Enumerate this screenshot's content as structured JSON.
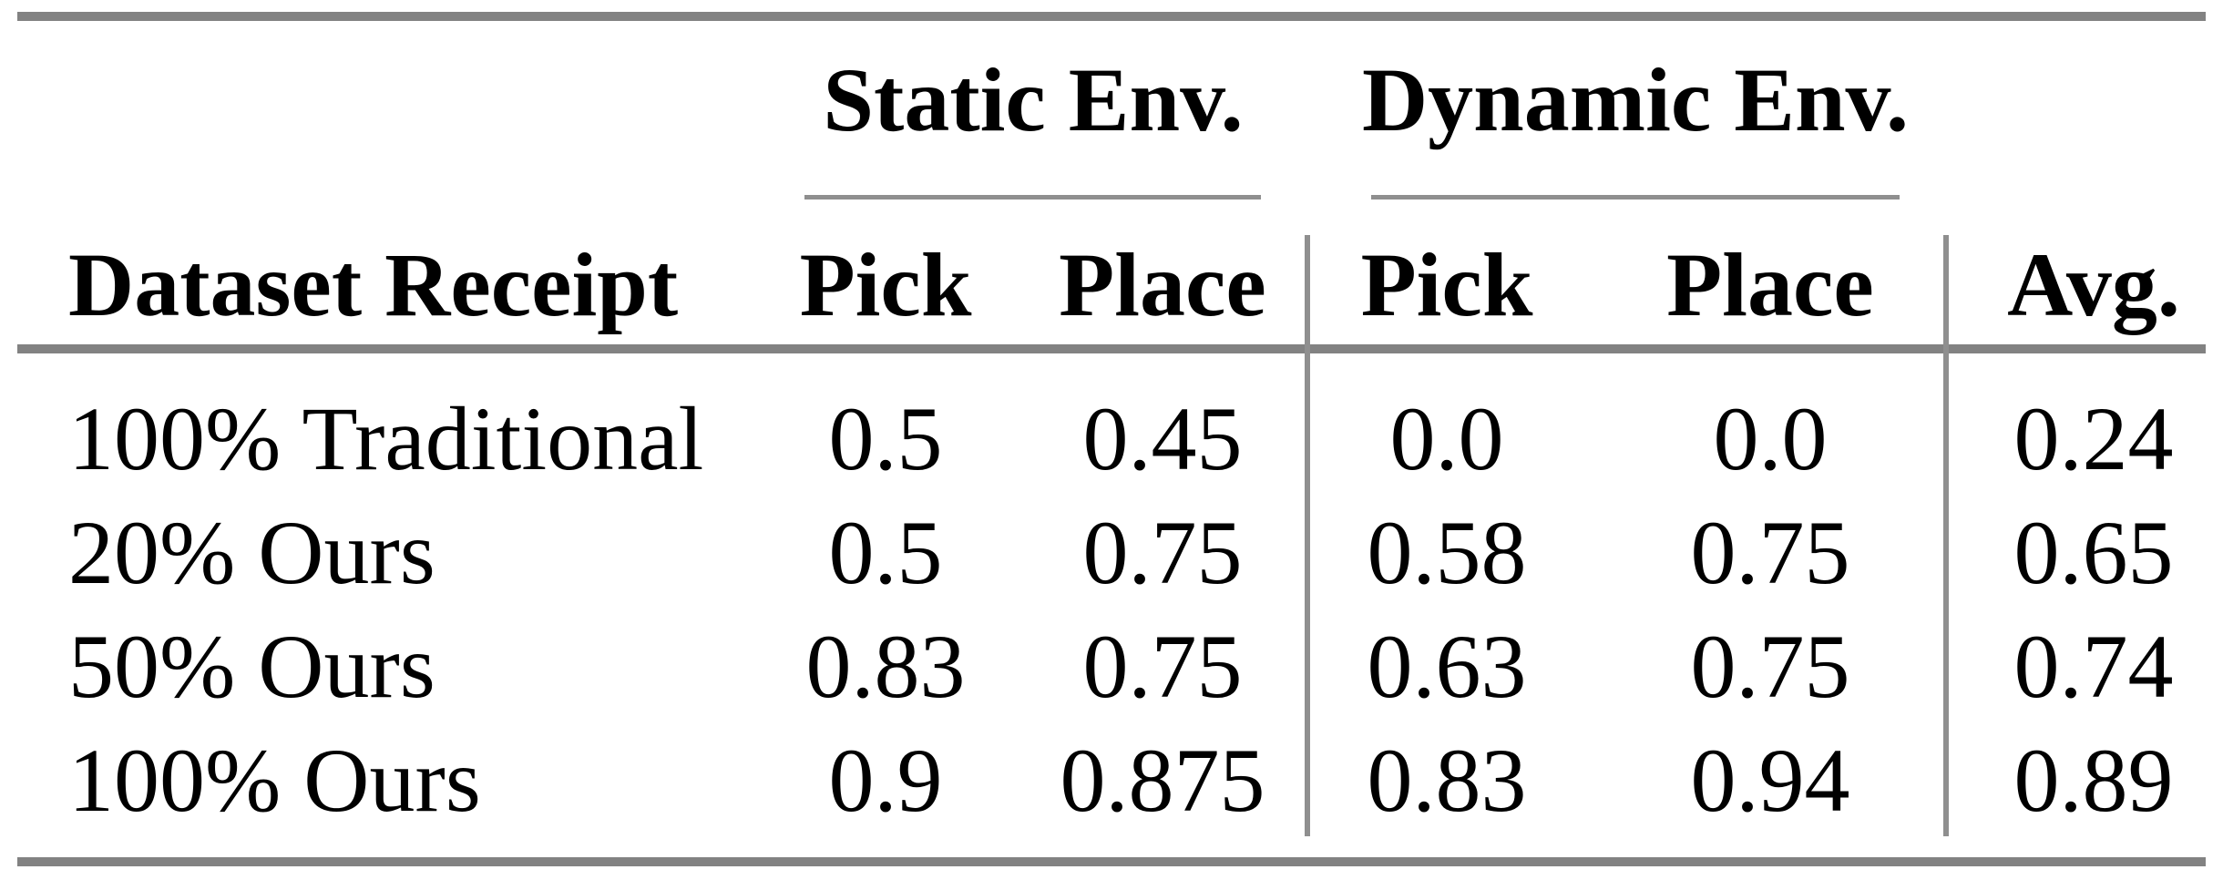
{
  "colors": {
    "background": "#ffffff",
    "text": "#000000",
    "heavy_rule": "#828282",
    "light_rule": "#8f8f8f"
  },
  "table": {
    "corner_header": "Dataset Receipt",
    "groups": [
      {
        "label": "Static Env.",
        "columns": [
          "Pick",
          "Place"
        ]
      },
      {
        "label": "Dynamic Env.",
        "columns": [
          "Pick",
          "Place"
        ]
      }
    ],
    "avg_header": "Avg.",
    "rows": [
      {
        "label": "100% Traditional",
        "values": [
          "0.5",
          "0.45",
          "0.0",
          "0.0",
          "0.24"
        ]
      },
      {
        "label": "20% Ours",
        "values": [
          "0.5",
          "0.75",
          "0.58",
          "0.75",
          "0.65"
        ]
      },
      {
        "label": "50% Ours",
        "values": [
          "0.83",
          "0.75",
          "0.63",
          "0.75",
          "0.74"
        ]
      },
      {
        "label": "100% Ours",
        "values": [
          "0.9",
          "0.875",
          "0.83",
          "0.94",
          "0.89"
        ]
      }
    ]
  }
}
